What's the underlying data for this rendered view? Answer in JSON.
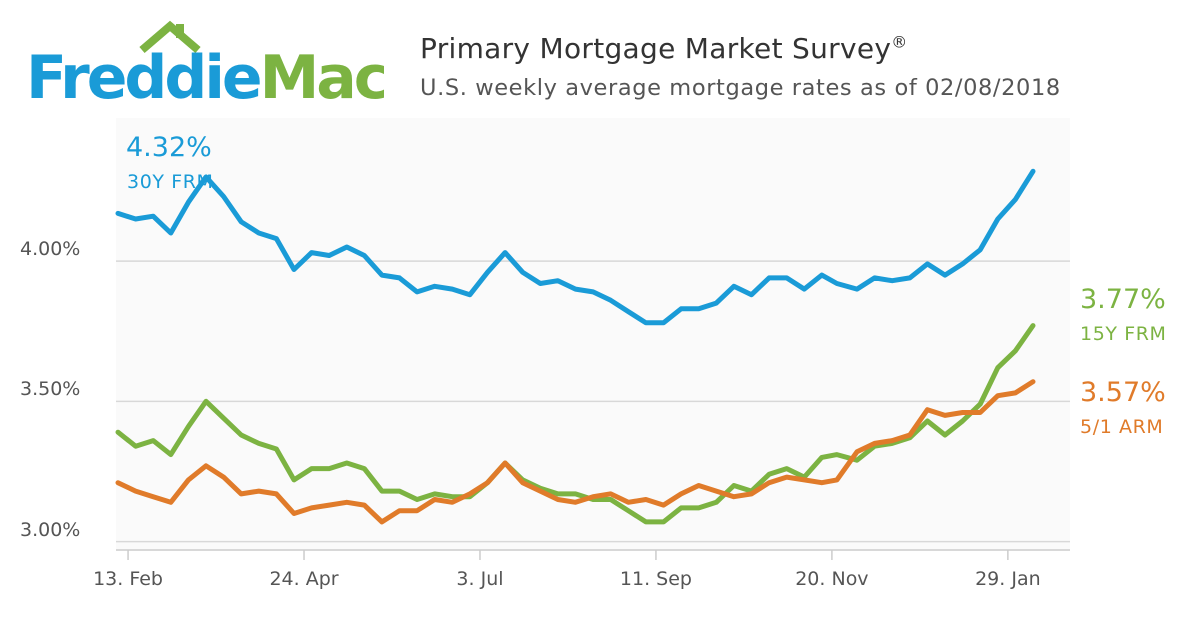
{
  "brand": {
    "name_part1": "Freddie",
    "name_part2": "Mac",
    "color_blue": "#1a9bd7",
    "color_green": "#7cb342"
  },
  "header": {
    "title": "Primary Mortgage Market Survey",
    "title_mark": "®",
    "subtitle": "U.S. weekly average mortgage rates as of 02/08/2018"
  },
  "chart_data": {
    "type": "line",
    "x": [
      "2017-02-09",
      "2017-02-16",
      "2017-02-23",
      "2017-03-02",
      "2017-03-09",
      "2017-03-16",
      "2017-03-23",
      "2017-03-30",
      "2017-04-06",
      "2017-04-13",
      "2017-04-20",
      "2017-04-27",
      "2017-05-04",
      "2017-05-11",
      "2017-05-18",
      "2017-05-25",
      "2017-06-01",
      "2017-06-08",
      "2017-06-15",
      "2017-06-22",
      "2017-06-29",
      "2017-07-06",
      "2017-07-13",
      "2017-07-20",
      "2017-07-27",
      "2017-08-03",
      "2017-08-10",
      "2017-08-17",
      "2017-08-24",
      "2017-08-31",
      "2017-09-07",
      "2017-09-14",
      "2017-09-21",
      "2017-09-28",
      "2017-10-05",
      "2017-10-12",
      "2017-10-19",
      "2017-10-26",
      "2017-11-02",
      "2017-11-09",
      "2017-11-16",
      "2017-11-22",
      "2017-11-30",
      "2017-12-07",
      "2017-12-14",
      "2017-12-21",
      "2017-12-28",
      "2018-01-04",
      "2018-01-11",
      "2018-01-18",
      "2018-01-25",
      "2018-02-01",
      "2018-02-08"
    ],
    "series": [
      {
        "name": "30Y FRM",
        "color": "#1a9bd7",
        "last_label": "4.32%",
        "values": [
          4.17,
          4.15,
          4.16,
          4.1,
          4.21,
          4.3,
          4.23,
          4.14,
          4.1,
          4.08,
          3.97,
          4.03,
          4.02,
          4.05,
          4.02,
          3.95,
          3.94,
          3.89,
          3.91,
          3.9,
          3.88,
          3.96,
          4.03,
          3.96,
          3.92,
          3.93,
          3.9,
          3.89,
          3.86,
          3.82,
          3.78,
          3.78,
          3.83,
          3.83,
          3.85,
          3.91,
          3.88,
          3.94,
          3.94,
          3.9,
          3.95,
          3.92,
          3.9,
          3.94,
          3.93,
          3.94,
          3.99,
          3.95,
          3.99,
          4.04,
          4.15,
          4.22,
          4.32
        ]
      },
      {
        "name": "15Y FRM",
        "color": "#7cb342",
        "last_label": "3.77%",
        "values": [
          3.39,
          3.34,
          3.36,
          3.31,
          3.41,
          3.5,
          3.44,
          3.38,
          3.35,
          3.33,
          3.22,
          3.26,
          3.26,
          3.28,
          3.26,
          3.18,
          3.18,
          3.15,
          3.17,
          3.16,
          3.16,
          3.21,
          3.28,
          3.22,
          3.19,
          3.17,
          3.17,
          3.15,
          3.15,
          3.11,
          3.07,
          3.07,
          3.12,
          3.12,
          3.14,
          3.2,
          3.18,
          3.24,
          3.26,
          3.23,
          3.3,
          3.31,
          3.29,
          3.34,
          3.35,
          3.37,
          3.43,
          3.38,
          3.43,
          3.49,
          3.62,
          3.68,
          3.77
        ]
      },
      {
        "name": "5/1 ARM",
        "color": "#e07b2a",
        "last_label": "3.57%",
        "values": [
          3.21,
          3.18,
          3.16,
          3.14,
          3.22,
          3.27,
          3.23,
          3.17,
          3.18,
          3.17,
          3.1,
          3.12,
          3.13,
          3.14,
          3.13,
          3.07,
          3.11,
          3.11,
          3.15,
          3.14,
          3.17,
          3.21,
          3.28,
          3.21,
          3.18,
          3.15,
          3.14,
          3.16,
          3.17,
          3.14,
          3.15,
          3.13,
          3.17,
          3.2,
          3.18,
          3.16,
          3.17,
          3.21,
          3.23,
          3.22,
          3.21,
          3.22,
          3.32,
          3.35,
          3.36,
          3.38,
          3.47,
          3.45,
          3.46,
          3.46,
          3.52,
          3.53,
          3.57
        ]
      }
    ],
    "x_ticks": [
      "13. Feb",
      "24. Apr",
      "3. Jul",
      "11. Sep",
      "20. Nov",
      "29. Jan"
    ],
    "x_tick_dates": [
      "2017-02-13",
      "2017-04-24",
      "2017-07-03",
      "2017-09-11",
      "2017-11-20",
      "2018-01-29"
    ],
    "y_ticks": [
      3.0,
      3.5,
      4.0
    ],
    "y_tick_labels": [
      "3.00%",
      "3.50%",
      "4.00%"
    ],
    "ylim": [
      2.97,
      4.51
    ],
    "grid": true,
    "legend": "none"
  }
}
